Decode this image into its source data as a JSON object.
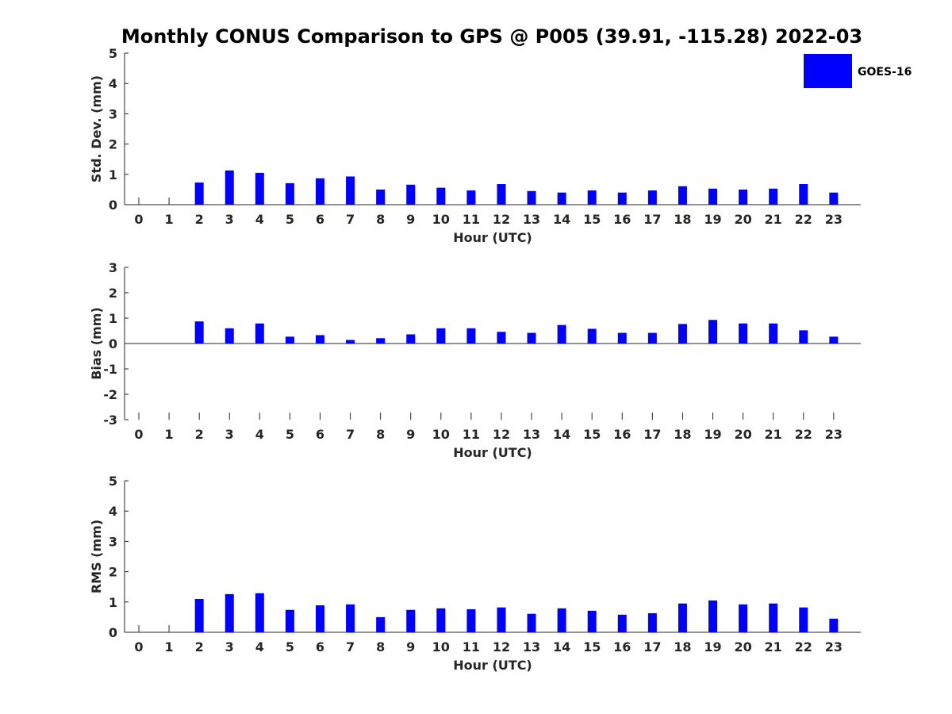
{
  "chart_data": {
    "title": "Monthly CONUS Comparison to GPS @ P005 (39.91, -115.28) 2022-03",
    "legend": {
      "entries": [
        "GOES-16"
      ],
      "placement": "top-right",
      "color": "#0000ff"
    },
    "panels": [
      {
        "type": "bar",
        "xlabel": "Hour (UTC)",
        "ylabel": "Std. Dev. (mm)",
        "ylim": [
          0,
          5
        ],
        "yticks": [
          "0",
          "1",
          "2",
          "3",
          "4",
          "5"
        ],
        "categories": [
          "0",
          "1",
          "2",
          "3",
          "4",
          "5",
          "6",
          "7",
          "8",
          "9",
          "10",
          "11",
          "12",
          "13",
          "14",
          "15",
          "16",
          "17",
          "18",
          "19",
          "20",
          "21",
          "22",
          "23"
        ],
        "series": [
          {
            "name": "GOES-16",
            "color": "#0000ff",
            "values": [
              null,
              null,
              0.73,
              1.13,
              1.05,
              0.71,
              0.87,
              0.93,
              0.5,
              0.66,
              0.56,
              0.47,
              0.68,
              0.45,
              0.4,
              0.47,
              0.4,
              0.47,
              0.61,
              0.53,
              0.5,
              0.53,
              0.68,
              0.4
            ]
          }
        ]
      },
      {
        "type": "bar",
        "xlabel": "Hour (UTC)",
        "ylabel": "Bias (mm)",
        "ylim": [
          -3,
          3
        ],
        "yticks": [
          "-3",
          "-2",
          "-1",
          "0",
          "1",
          "2",
          "3"
        ],
        "categories": [
          "0",
          "1",
          "2",
          "3",
          "4",
          "5",
          "6",
          "7",
          "8",
          "9",
          "10",
          "11",
          "12",
          "13",
          "14",
          "15",
          "16",
          "17",
          "18",
          "19",
          "20",
          "21",
          "22",
          "23"
        ],
        "series": [
          {
            "name": "GOES-16",
            "color": "#0000ff",
            "values": [
              null,
              null,
              0.87,
              0.6,
              0.79,
              0.27,
              0.33,
              0.14,
              0.21,
              0.36,
              0.6,
              0.6,
              0.46,
              0.42,
              0.73,
              0.58,
              0.42,
              0.42,
              0.77,
              0.93,
              0.79,
              0.79,
              0.52,
              0.27
            ]
          }
        ]
      },
      {
        "type": "bar",
        "xlabel": "Hour (UTC)",
        "ylabel": "RMS (mm)",
        "ylim": [
          0,
          5
        ],
        "yticks": [
          "0",
          "1",
          "2",
          "3",
          "4",
          "5"
        ],
        "categories": [
          "0",
          "1",
          "2",
          "3",
          "4",
          "5",
          "6",
          "7",
          "8",
          "9",
          "10",
          "11",
          "12",
          "13",
          "14",
          "15",
          "16",
          "17",
          "18",
          "19",
          "20",
          "21",
          "22",
          "23"
        ],
        "series": [
          {
            "name": "GOES-16",
            "color": "#0000ff",
            "values": [
              null,
              null,
              1.1,
              1.26,
              1.29,
              0.74,
              0.89,
              0.92,
              0.5,
              0.74,
              0.79,
              0.76,
              0.82,
              0.61,
              0.79,
              0.71,
              0.58,
              0.63,
              0.95,
              1.05,
              0.92,
              0.95,
              0.82,
              0.45
            ]
          }
        ]
      }
    ]
  }
}
